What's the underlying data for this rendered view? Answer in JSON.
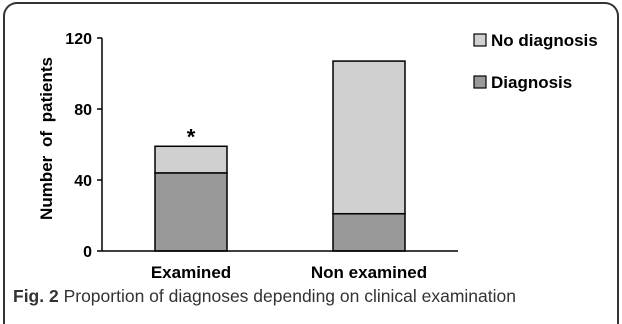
{
  "chart_data": {
    "type": "bar",
    "stacked": true,
    "categories": [
      "Examined",
      "Non examined"
    ],
    "series": [
      {
        "name": "Diagnosis",
        "values": [
          44,
          21
        ],
        "color": "#999999"
      },
      {
        "name": "No diagnosis",
        "values": [
          15,
          86
        ],
        "color": "#d0d0d0"
      }
    ],
    "title": "",
    "xlabel": "",
    "ylabel": "Number of patients",
    "ylim": [
      0,
      120
    ],
    "yticks": [
      0,
      40,
      80,
      120
    ],
    "grid": false,
    "legend_position": "right",
    "legend": [
      "No diagnosis",
      "Diagnosis"
    ],
    "annotations": [
      {
        "text": "*",
        "category": "Examined"
      }
    ]
  },
  "caption": {
    "label": "Fig. 2",
    "text": "Proportion of diagnoses depending on clinical examination"
  }
}
